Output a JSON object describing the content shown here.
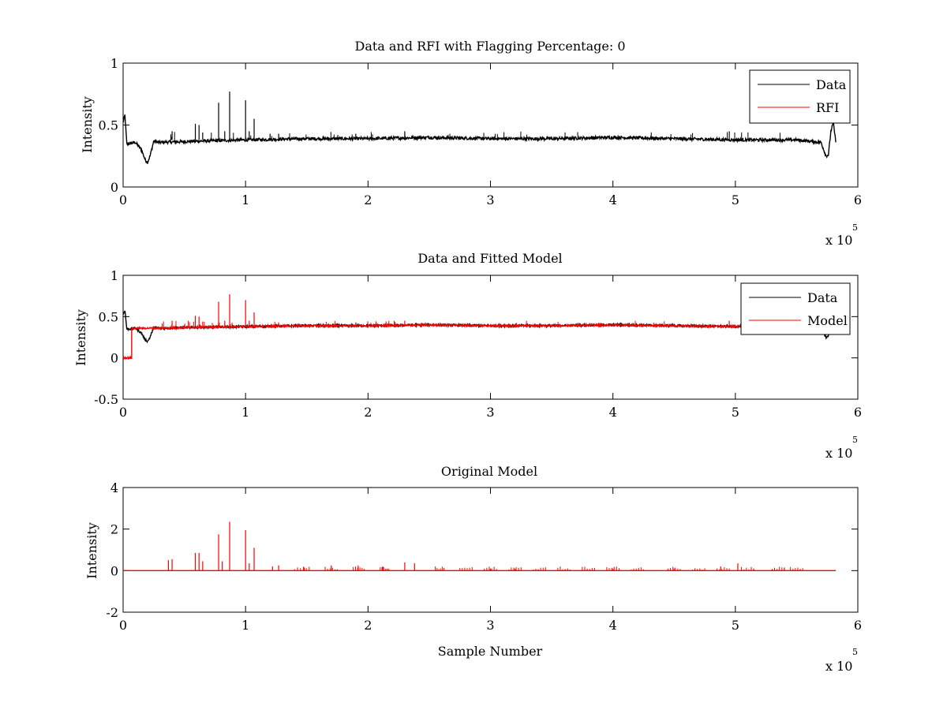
{
  "figure": {
    "background": "#ffffff",
    "colors": {
      "data": "#000000",
      "model": "#ff0000"
    }
  },
  "chart_data": [
    {
      "type": "line",
      "title": "Data and RFI with Flagging Percentage: 0",
      "xlabel": "",
      "ylabel": "Intensity",
      "xlim": [
        0,
        600000
      ],
      "ylim": [
        0,
        1
      ],
      "xticks": [
        0,
        1,
        2,
        3,
        4,
        5,
        6
      ],
      "xtick_labels": [
        "0",
        "1",
        "2",
        "3",
        "4",
        "5",
        "6"
      ],
      "yticks": [
        0,
        0.5,
        1
      ],
      "ytick_labels": [
        "0",
        "0.5",
        "1"
      ],
      "x_exponent_label": "x 10",
      "x_exponent_power": "5",
      "grid": false,
      "legend_position": "top-right",
      "legend": [
        {
          "name": "Data",
          "color": "#000000"
        },
        {
          "name": "RFI",
          "color": "#ff0000"
        }
      ],
      "series": [
        {
          "name": "Data",
          "color": "#000000",
          "x": [
            0,
            1500,
            3000,
            5000,
            10000,
            15000,
            18000,
            20000,
            22000,
            25000,
            30000,
            60000,
            100000,
            150000,
            200000,
            250000,
            300000,
            350000,
            400000,
            450000,
            500000,
            550000,
            570000,
            574000,
            576000,
            578000,
            580000,
            582000
          ],
          "y": [
            0.52,
            0.58,
            0.35,
            0.35,
            0.36,
            0.3,
            0.22,
            0.2,
            0.25,
            0.37,
            0.36,
            0.37,
            0.38,
            0.39,
            0.39,
            0.4,
            0.39,
            0.39,
            0.4,
            0.39,
            0.38,
            0.38,
            0.36,
            0.25,
            0.26,
            0.45,
            0.52,
            0.36
          ],
          "spikes": [
            {
              "x": 40000,
              "y": 0.45
            },
            {
              "x": 59000,
              "y": 0.51
            },
            {
              "x": 62000,
              "y": 0.5
            },
            {
              "x": 65000,
              "y": 0.44
            },
            {
              "x": 78000,
              "y": 0.68
            },
            {
              "x": 83000,
              "y": 0.45
            },
            {
              "x": 87000,
              "y": 0.77
            },
            {
              "x": 100000,
              "y": 0.7
            },
            {
              "x": 103000,
              "y": 0.45
            },
            {
              "x": 107000,
              "y": 0.55
            },
            {
              "x": 120000,
              "y": 0.43
            },
            {
              "x": 127000,
              "y": 0.43
            },
            {
              "x": 190000,
              "y": 0.43
            },
            {
              "x": 230000,
              "y": 0.45
            },
            {
              "x": 495000,
              "y": 0.45
            }
          ]
        }
      ]
    },
    {
      "type": "line",
      "title": "Data and Fitted Model",
      "xlabel": "",
      "ylabel": "Intensity",
      "xlim": [
        0,
        600000
      ],
      "ylim": [
        -0.5,
        1
      ],
      "xticks": [
        0,
        1,
        2,
        3,
        4,
        5,
        6
      ],
      "xtick_labels": [
        "0",
        "1",
        "2",
        "3",
        "4",
        "5",
        "6"
      ],
      "yticks": [
        -0.5,
        0,
        0.5,
        1
      ],
      "ytick_labels": [
        "-0.5",
        "0",
        "0.5",
        "1"
      ],
      "x_exponent_label": "x 10",
      "x_exponent_power": "5",
      "grid": false,
      "legend_position": "top-right",
      "legend": [
        {
          "name": "Data",
          "color": "#000000"
        },
        {
          "name": "Model",
          "color": "#ff0000"
        }
      ],
      "series": [
        {
          "name": "Data",
          "color": "#000000",
          "x": [
            0,
            1500,
            3000,
            5000,
            10000,
            15000,
            18000,
            20000,
            22000,
            25000,
            30000,
            60000,
            100000,
            150000,
            200000,
            250000,
            300000,
            350000,
            400000,
            450000,
            500000,
            550000,
            570000,
            574000,
            576000,
            578000,
            580000,
            582000
          ],
          "y": [
            0.52,
            0.58,
            0.35,
            0.35,
            0.36,
            0.3,
            0.22,
            0.2,
            0.25,
            0.37,
            0.36,
            0.37,
            0.38,
            0.39,
            0.39,
            0.4,
            0.39,
            0.39,
            0.4,
            0.39,
            0.38,
            0.38,
            0.36,
            0.25,
            0.26,
            0.45,
            0.52,
            0.36
          ]
        },
        {
          "name": "Model",
          "color": "#ff0000",
          "x": [
            0,
            7000,
            7001,
            10000,
            30000,
            60000,
            100000,
            150000,
            200000,
            250000,
            300000,
            350000,
            400000,
            450000,
            500000,
            550000,
            580000
          ],
          "y": [
            0.0,
            0.0,
            0.35,
            0.36,
            0.36,
            0.37,
            0.38,
            0.39,
            0.39,
            0.4,
            0.39,
            0.39,
            0.4,
            0.39,
            0.38,
            0.38,
            0.38
          ],
          "spikes": [
            {
              "x": 40000,
              "y": 0.45
            },
            {
              "x": 59000,
              "y": 0.51
            },
            {
              "x": 62000,
              "y": 0.5
            },
            {
              "x": 65000,
              "y": 0.44
            },
            {
              "x": 78000,
              "y": 0.68
            },
            {
              "x": 83000,
              "y": 0.45
            },
            {
              "x": 87000,
              "y": 0.77
            },
            {
              "x": 100000,
              "y": 0.7
            },
            {
              "x": 103000,
              "y": 0.45
            },
            {
              "x": 107000,
              "y": 0.55
            },
            {
              "x": 127000,
              "y": 0.43
            },
            {
              "x": 190000,
              "y": 0.43
            },
            {
              "x": 230000,
              "y": 0.45
            },
            {
              "x": 495000,
              "y": 0.45
            }
          ]
        }
      ]
    },
    {
      "type": "line",
      "title": "Original Model",
      "xlabel": "Sample Number",
      "ylabel": "Intensity",
      "xlim": [
        0,
        600000
      ],
      "ylim": [
        -2,
        4
      ],
      "xticks": [
        0,
        1,
        2,
        3,
        4,
        5,
        6
      ],
      "xtick_labels": [
        "0",
        "1",
        "2",
        "3",
        "4",
        "5",
        "6"
      ],
      "yticks": [
        -2,
        0,
        2,
        4
      ],
      "ytick_labels": [
        "-2",
        "0",
        "2",
        "4"
      ],
      "x_exponent_label": "x 10",
      "x_exponent_power": "5",
      "grid": false,
      "series": [
        {
          "name": "",
          "color": "#ff0000",
          "x": [
            0,
            582000
          ],
          "y": [
            0,
            0
          ],
          "spikes": [
            {
              "x": 37000,
              "y": 0.5
            },
            {
              "x": 40000,
              "y": 0.55
            },
            {
              "x": 59000,
              "y": 0.85
            },
            {
              "x": 62000,
              "y": 0.85
            },
            {
              "x": 65000,
              "y": 0.45
            },
            {
              "x": 78000,
              "y": 1.75
            },
            {
              "x": 81000,
              "y": 0.45
            },
            {
              "x": 87000,
              "y": 2.35
            },
            {
              "x": 100000,
              "y": 1.95
            },
            {
              "x": 103000,
              "y": 0.35
            },
            {
              "x": 107000,
              "y": 1.1
            },
            {
              "x": 122000,
              "y": 0.2
            },
            {
              "x": 127000,
              "y": 0.25
            },
            {
              "x": 148000,
              "y": 0.15
            },
            {
              "x": 170000,
              "y": 0.25
            },
            {
              "x": 192000,
              "y": 0.25
            },
            {
              "x": 212000,
              "y": 0.2
            },
            {
              "x": 230000,
              "y": 0.4
            },
            {
              "x": 238000,
              "y": 0.35
            },
            {
              "x": 300000,
              "y": 0.1
            },
            {
              "x": 320000,
              "y": 0.1
            },
            {
              "x": 400000,
              "y": 0.1
            },
            {
              "x": 450000,
              "y": 0.1
            },
            {
              "x": 488000,
              "y": 0.2
            },
            {
              "x": 502000,
              "y": 0.35
            },
            {
              "x": 515000,
              "y": 0.1
            },
            {
              "x": 540000,
              "y": 0.15
            }
          ],
          "minor_spike_groups": [
            [
              140000,
              152000
            ],
            [
              165000,
              175000
            ],
            [
              188000,
              197000
            ],
            [
              210000,
              217000
            ],
            [
              255000,
              262000
            ],
            [
              275000,
              285000
            ],
            [
              295000,
              305000
            ],
            [
              315000,
              325000
            ],
            [
              335000,
              345000
            ],
            [
              355000,
              365000
            ],
            [
              375000,
              385000
            ],
            [
              395000,
              405000
            ],
            [
              415000,
              425000
            ],
            [
              445000,
              455000
            ],
            [
              465000,
              475000
            ],
            [
              485000,
              495000
            ],
            [
              505000,
              515000
            ],
            [
              530000,
              540000
            ],
            [
              545000,
              555000
            ]
          ]
        }
      ]
    }
  ]
}
